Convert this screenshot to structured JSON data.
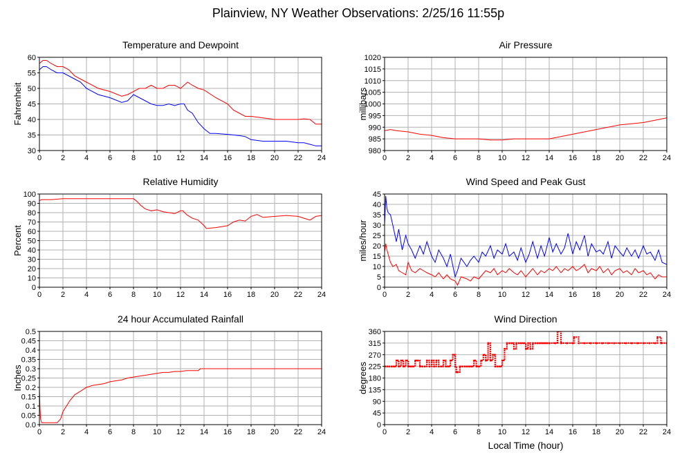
{
  "title": "Plainview, NY Weather Observations: 2/25/16 11:55p",
  "xlabel": "Local Time (hour)",
  "colors": {
    "red_series": "#ff0000",
    "blue_series": "#0000ff",
    "grid": "#b0b0b0",
    "axes": "#000000"
  },
  "chart_data": [
    {
      "type": "line",
      "title": "Temperature and Dewpoint",
      "xlabel": "",
      "ylabel": "Fahrenheit",
      "xlim": [
        0,
        24
      ],
      "ylim": [
        30,
        60
      ],
      "xticks": [
        0,
        2,
        4,
        6,
        8,
        10,
        12,
        14,
        16,
        18,
        20,
        22,
        24
      ],
      "yticks": [
        30,
        35,
        40,
        45,
        50,
        55,
        60
      ],
      "grid": true,
      "series": [
        {
          "color": "#ff0000",
          "x": [
            0,
            0.3,
            0.6,
            1,
            1.5,
            2,
            2.5,
            3,
            3.5,
            4,
            5,
            6,
            7,
            7.5,
            8,
            8.5,
            9,
            9.5,
            10,
            10.5,
            11,
            11.5,
            12,
            12.3,
            12.6,
            13,
            13.5,
            14,
            15,
            16,
            16.5,
            17,
            17.5,
            18,
            19,
            20,
            21,
            22,
            22.5,
            23,
            23.5,
            24
          ],
          "y": [
            58,
            59,
            59,
            58,
            57,
            57,
            56,
            54,
            53,
            52,
            50,
            49,
            47.5,
            48,
            49,
            50,
            50,
            51,
            50,
            50,
            51,
            51,
            50,
            51,
            52,
            51,
            50,
            49.5,
            47,
            45,
            43,
            42,
            41,
            41,
            40.5,
            40,
            40,
            40,
            40.2,
            40,
            38.5,
            38.5
          ]
        },
        {
          "color": "#0000ff",
          "x": [
            0,
            0.3,
            0.6,
            1,
            1.5,
            2,
            2.5,
            3,
            3.5,
            4,
            5,
            6,
            7,
            7.5,
            8,
            8.5,
            9,
            9.5,
            10,
            10.5,
            11,
            11.5,
            12,
            12.3,
            12.6,
            13,
            13.5,
            14,
            14.5,
            15,
            16,
            17,
            17.5,
            18,
            19,
            20,
            21,
            22,
            22.5,
            23,
            23.5,
            24
          ],
          "y": [
            56,
            57,
            57,
            56,
            55,
            55,
            54,
            53,
            52,
            50,
            48,
            47,
            45.5,
            46,
            48,
            47,
            46,
            45,
            44.5,
            44.5,
            45,
            44.5,
            45,
            45,
            43,
            42,
            39,
            37,
            35.5,
            35.5,
            35.2,
            34.8,
            34.5,
            33.5,
            33,
            33,
            33,
            32.5,
            32.5,
            32,
            31.5,
            31.5
          ]
        }
      ]
    },
    {
      "type": "line",
      "title": "Air Pressure",
      "xlabel": "",
      "ylabel": "millibars",
      "xlim": [
        0,
        24
      ],
      "ylim": [
        980,
        1020
      ],
      "xticks": [
        0,
        2,
        4,
        6,
        8,
        10,
        12,
        14,
        16,
        18,
        20,
        22,
        24
      ],
      "yticks": [
        980,
        985,
        990,
        995,
        1000,
        1005,
        1010,
        1015,
        1020
      ],
      "grid": true,
      "series": [
        {
          "color": "#ff0000",
          "x": [
            0,
            0.5,
            1,
            2,
            3,
            4,
            5,
            6,
            7,
            8,
            9,
            10,
            11,
            12,
            13,
            14,
            15,
            16,
            17,
            18,
            19,
            20,
            21,
            22,
            23,
            24
          ],
          "y": [
            988.5,
            989,
            988.5,
            988,
            987,
            986.5,
            985.5,
            985,
            985,
            985,
            984.5,
            984.5,
            985,
            985,
            985,
            985,
            986,
            987,
            988,
            989,
            990,
            991,
            991.5,
            992,
            993,
            994
          ]
        }
      ]
    },
    {
      "type": "line",
      "title": "Relative Humidity",
      "xlabel": "",
      "ylabel": "Percent",
      "xlim": [
        0,
        24
      ],
      "ylim": [
        0,
        100
      ],
      "xticks": [
        0,
        2,
        4,
        6,
        8,
        10,
        12,
        14,
        16,
        18,
        20,
        22,
        24
      ],
      "yticks": [
        0,
        10,
        20,
        30,
        40,
        50,
        60,
        70,
        80,
        90,
        100
      ],
      "grid": true,
      "series": [
        {
          "color": "#ff0000",
          "x": [
            0,
            0.2,
            1,
            2,
            3,
            4,
            5,
            6,
            7,
            8,
            8.3,
            8.6,
            9,
            9.5,
            10,
            10.5,
            11,
            11.5,
            12,
            12.2,
            12.5,
            13,
            13.5,
            14,
            14.2,
            15,
            15.5,
            16,
            16.5,
            17,
            17.5,
            18,
            18.5,
            19,
            20,
            21,
            22,
            22.5,
            23,
            23.5,
            24
          ],
          "y": [
            93,
            94,
            94,
            95,
            95,
            95,
            95,
            95,
            95,
            95,
            92,
            88,
            84,
            82,
            83,
            81,
            80,
            79,
            82,
            82,
            78,
            74,
            72,
            66,
            63,
            64,
            65,
            66,
            70,
            72,
            71,
            76,
            78,
            75,
            76,
            77,
            76,
            74,
            72,
            76,
            77
          ]
        }
      ]
    },
    {
      "type": "line",
      "title": "Wind Speed and Peak Gust",
      "xlabel": "",
      "ylabel": "miles/hour",
      "xlim": [
        0,
        24
      ],
      "ylim": [
        0,
        45
      ],
      "xticks": [
        0,
        2,
        4,
        6,
        8,
        10,
        12,
        14,
        16,
        18,
        20,
        22,
        24
      ],
      "yticks": [
        0,
        5,
        10,
        15,
        20,
        25,
        30,
        35,
        40,
        45
      ],
      "grid": true,
      "series": [
        {
          "color": "#0000ff",
          "x": [
            0,
            0.1,
            0.2,
            0.3,
            0.5,
            0.7,
            1,
            1.2,
            1.5,
            1.8,
            2,
            2.3,
            2.6,
            3,
            3.3,
            3.6,
            4,
            4.3,
            4.6,
            5,
            5.3,
            5.6,
            6,
            6.2,
            6.5,
            7,
            7.3,
            7.6,
            8,
            8.3,
            8.6,
            9,
            9.3,
            9.6,
            10,
            10.3,
            10.6,
            11,
            11.3,
            11.6,
            12,
            12.3,
            12.6,
            13,
            13.3,
            13.6,
            14,
            14.3,
            14.6,
            15,
            15.3,
            15.6,
            16,
            16.3,
            16.6,
            17,
            17.3,
            17.6,
            18,
            18.3,
            18.6,
            19,
            19.3,
            19.6,
            20,
            20.3,
            20.6,
            21,
            21.3,
            21.6,
            22,
            22.3,
            22.6,
            23,
            23.3,
            23.6,
            24
          ],
          "y": [
            30,
            44,
            38,
            36,
            35,
            30,
            22,
            28,
            18,
            25,
            21,
            18,
            14,
            20,
            16,
            22,
            15,
            12,
            18,
            14,
            10,
            16,
            5,
            8,
            14,
            10,
            13,
            15,
            12,
            17,
            15,
            20,
            14,
            18,
            16,
            21,
            15,
            17,
            13,
            19,
            12,
            16,
            22,
            14,
            20,
            15,
            24,
            17,
            21,
            16,
            19,
            26,
            16,
            22,
            18,
            25,
            15,
            21,
            17,
            18,
            16,
            22,
            14,
            20,
            17,
            15,
            19,
            15,
            18,
            14,
            20,
            16,
            17,
            13,
            18,
            12,
            11
          ]
        },
        {
          "color": "#ff0000",
          "x": [
            0,
            0.1,
            0.2,
            0.3,
            0.5,
            0.7,
            1,
            1.2,
            1.5,
            1.8,
            2,
            2.3,
            2.6,
            3,
            3.3,
            3.6,
            4,
            4.3,
            4.6,
            5,
            5.3,
            5.6,
            6,
            6.2,
            6.5,
            7,
            7.3,
            7.6,
            8,
            8.3,
            8.6,
            9,
            9.3,
            9.6,
            10,
            10.3,
            10.6,
            11,
            11.3,
            11.6,
            12,
            12.3,
            12.6,
            13,
            13.3,
            13.6,
            14,
            14.3,
            14.6,
            15,
            15.3,
            15.6,
            16,
            16.3,
            16.6,
            17,
            17.3,
            17.6,
            18,
            18.3,
            18.6,
            19,
            19.3,
            19.6,
            20,
            20.3,
            20.6,
            21,
            21.3,
            21.6,
            22,
            22.3,
            22.6,
            23,
            23.3,
            23.6,
            24
          ],
          "y": [
            17,
            21,
            18,
            16,
            12,
            10,
            11,
            8,
            7,
            6,
            12,
            8,
            7,
            9,
            8,
            7,
            6,
            5,
            7,
            4,
            6,
            4,
            3,
            1,
            5,
            4,
            3,
            5,
            4,
            6,
            8,
            7,
            9,
            6,
            8,
            7,
            9,
            7,
            6,
            8,
            5,
            7,
            9,
            6,
            8,
            7,
            9,
            8,
            10,
            7,
            9,
            8,
            10,
            8,
            9,
            11,
            7,
            9,
            8,
            10,
            7,
            9,
            6,
            8,
            9,
            7,
            8,
            6,
            9,
            7,
            8,
            6,
            7,
            4,
            6,
            5,
            5
          ]
        }
      ]
    },
    {
      "type": "line",
      "title": "24 hour Accumulated Rainfall",
      "xlabel": "",
      "ylabel": "Inches",
      "xlim": [
        0,
        24
      ],
      "ylim": [
        0,
        0.5
      ],
      "xticks": [
        0,
        2,
        4,
        6,
        8,
        10,
        12,
        14,
        16,
        18,
        20,
        22,
        24
      ],
      "yticks": [
        0.0,
        0.05,
        0.1,
        0.15,
        0.2,
        0.25,
        0.3,
        0.35,
        0.4,
        0.45,
        0.5
      ],
      "grid": true,
      "series": [
        {
          "color": "#ff0000",
          "x": [
            0,
            0.05,
            0.1,
            0.15,
            0.2,
            1,
            1.5,
            1.8,
            2,
            2.3,
            2.6,
            3,
            3.5,
            4,
            4.5,
            5,
            5.5,
            6,
            6.5,
            7,
            7.5,
            8,
            8.5,
            9,
            9.5,
            10,
            10.5,
            11,
            11.5,
            12,
            12.5,
            13,
            13.5,
            13.7,
            14,
            16,
            18,
            20,
            22,
            24
          ],
          "y": [
            0.2,
            0.08,
            0.03,
            0.02,
            0.01,
            0.01,
            0.01,
            0.03,
            0.07,
            0.1,
            0.13,
            0.16,
            0.18,
            0.2,
            0.21,
            0.215,
            0.22,
            0.23,
            0.235,
            0.24,
            0.25,
            0.255,
            0.26,
            0.265,
            0.27,
            0.275,
            0.28,
            0.28,
            0.285,
            0.285,
            0.29,
            0.29,
            0.29,
            0.3,
            0.3,
            0.3,
            0.3,
            0.3,
            0.3,
            0.3
          ]
        }
      ]
    },
    {
      "type": "scatter",
      "title": "Wind Direction",
      "xlabel": "Local Time (hour)",
      "ylabel": "degrees",
      "xlim": [
        0,
        24
      ],
      "ylim": [
        0,
        360
      ],
      "xticks": [
        0,
        2,
        4,
        6,
        8,
        10,
        12,
        14,
        16,
        18,
        20,
        22,
        24
      ],
      "yticks": [
        0,
        45,
        90,
        135,
        180,
        225,
        270,
        315,
        360
      ],
      "grid": true,
      "series": [
        {
          "color": "#ff0000",
          "x": [
            0,
            0.2,
            0.4,
            0.6,
            0.8,
            1,
            1.2,
            1.4,
            1.6,
            1.8,
            2,
            2.2,
            2.4,
            2.6,
            2.8,
            3,
            3.2,
            3.4,
            3.6,
            3.8,
            4,
            4.2,
            4.4,
            4.6,
            4.8,
            5,
            5.2,
            5.4,
            5.6,
            5.8,
            6,
            6.1,
            6.2,
            6.4,
            6.6,
            6.8,
            7,
            7.2,
            7.4,
            7.6,
            7.8,
            8,
            8.2,
            8.4,
            8.6,
            8.8,
            9,
            9.2,
            9.4,
            9.6,
            9.8,
            10,
            10.2,
            10.4,
            10.6,
            10.8,
            11,
            11.2,
            11.4,
            11.6,
            11.8,
            12,
            12.2,
            12.4,
            12.6,
            12.8,
            13,
            13.2,
            13.4,
            13.6,
            13.8,
            14,
            14.5,
            14.7,
            15,
            15.5,
            16,
            16.1,
            16.5,
            17,
            17.5,
            18,
            18.5,
            19,
            19.5,
            20,
            20.5,
            21,
            21.5,
            22,
            22.5,
            23,
            23.2,
            23.5,
            24
          ],
          "y": [
            225,
            225,
            225,
            225,
            225,
            248,
            225,
            248,
            225,
            248,
            225,
            225,
            225,
            248,
            248,
            225,
            225,
            225,
            248,
            225,
            248,
            225,
            248,
            225,
            225,
            248,
            225,
            225,
            248,
            270,
            225,
            203,
            203,
            225,
            225,
            225,
            225,
            225,
            225,
            248,
            225,
            225,
            248,
            270,
            248,
            315,
            248,
            270,
            225,
            225,
            225,
            248,
            293,
            315,
            315,
            315,
            293,
            315,
            315,
            315,
            315,
            293,
            315,
            293,
            315,
            315,
            315,
            315,
            315,
            315,
            315,
            315,
            315,
            360,
            315,
            315,
            315,
            338,
            315,
            315,
            315,
            315,
            315,
            315,
            315,
            315,
            315,
            315,
            315,
            315,
            315,
            315,
            338,
            315,
            315
          ]
        }
      ]
    }
  ]
}
